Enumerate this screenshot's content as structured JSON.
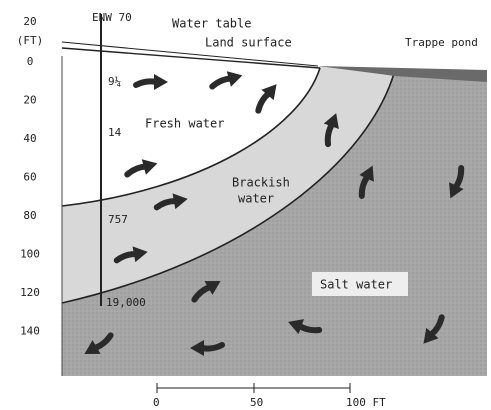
{
  "axis": {
    "top_label": "20",
    "unit": "(FT)",
    "labels": [
      "0",
      "20",
      "40",
      "60",
      "80",
      "100",
      "120",
      "140"
    ]
  },
  "well": {
    "name": "ENW 70",
    "readings": [
      "9¼",
      "14",
      "757",
      "19,000"
    ]
  },
  "surface_labels": {
    "water_table": "Water table",
    "land_surface": "Land surface",
    "pond": "Trappe pond"
  },
  "zones": {
    "fresh": "Fresh water",
    "brackish": [
      "Brackish",
      "water"
    ],
    "salt": "Salt water"
  },
  "scale": {
    "labels": [
      "0",
      "50",
      "100 FT"
    ]
  }
}
